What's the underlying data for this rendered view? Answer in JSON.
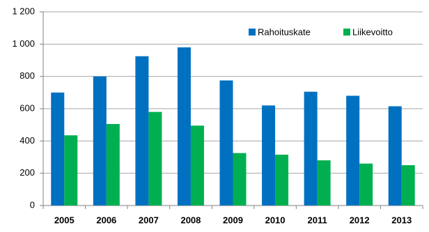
{
  "chart_data": {
    "type": "bar",
    "categories": [
      "2005",
      "2006",
      "2007",
      "2008",
      "2009",
      "2010",
      "2011",
      "2012",
      "2013"
    ],
    "series": [
      {
        "name": "Rahoituskate",
        "color": "#0070c0",
        "values": [
          700,
          800,
          925,
          980,
          775,
          620,
          705,
          680,
          615
        ]
      },
      {
        "name": "Liikevoitto",
        "color": "#00b050",
        "values": [
          435,
          505,
          580,
          495,
          325,
          315,
          280,
          260,
          250
        ]
      }
    ],
    "ylim": [
      0,
      1200
    ],
    "yticks": [
      0,
      200,
      400,
      600,
      800,
      {
        "value": 1000,
        "label": "1 000"
      },
      {
        "value": 1200,
        "label": "1 200"
      }
    ],
    "grid": true,
    "legend": "top-right"
  }
}
